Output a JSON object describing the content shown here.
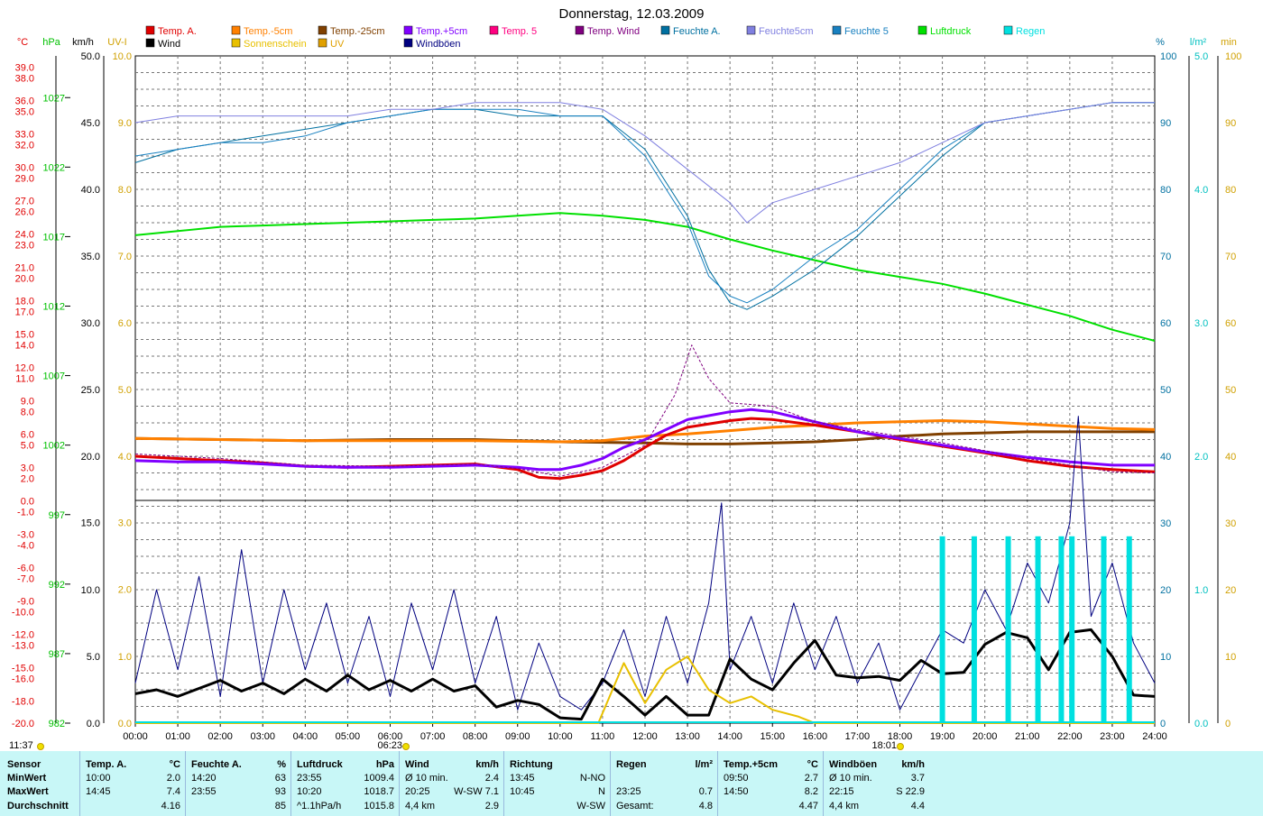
{
  "title": "Donnerstag, 12.03.2009",
  "legend": [
    {
      "label": "Temp. A.",
      "color": "#e00000"
    },
    {
      "label": "Wind",
      "color": "#000000"
    },
    {
      "label": "Temp.-5cm",
      "color": "#ff8000"
    },
    {
      "label": "Sonnenschein",
      "color": "#e8c000"
    },
    {
      "label": "Temp.-25cm",
      "color": "#804000"
    },
    {
      "label": "UV",
      "color": "#e0a000"
    },
    {
      "label": "Temp.+5cm",
      "color": "#8000ff"
    },
    {
      "label": "Windböen",
      "color": "#000080"
    },
    {
      "label": "Temp. 5",
      "color": "#ff0080"
    },
    {
      "label": "Temp. Wind",
      "color": "#800080"
    },
    {
      "label": "Feuchte A.",
      "color": "#0070a0"
    },
    {
      "label": "Feuchte5cm",
      "color": "#8080e0"
    },
    {
      "label": "Feuchte 5",
      "color": "#1880c0"
    },
    {
      "label": "Luftdruck",
      "color": "#00e000"
    },
    {
      "label": "Regen",
      "color": "#00e0e0"
    }
  ],
  "axis_units": {
    "temp": "°C",
    "hpa": "hPa",
    "kmh": "km/h",
    "uvi": "UV-I",
    "pct": "%",
    "lm2": "l/m²",
    "min": "min"
  },
  "axis_colors": {
    "temp": "#e00000",
    "hpa": "#00c000",
    "kmh": "#000000",
    "uvi": "#d0a000",
    "pct": "#0070a0",
    "lm2": "#00c0c0",
    "min": "#d0a000"
  },
  "axes": {
    "temp_ticks": [
      "39.0",
      "38.0",
      "36.0",
      "35.0",
      "33.0",
      "32.0",
      "30.0",
      "29.0",
      "27.0",
      "26.0",
      "24.0",
      "23.0",
      "21.0",
      "20.0",
      "18.0",
      "17.0",
      "15.0",
      "14.0",
      "12.0",
      "11.0",
      "9.0",
      "8.0",
      "6.0",
      "5.0",
      "3.0",
      "2.0",
      "0.0",
      "-1.0",
      "-3.0",
      "-4.0",
      "-6.0",
      "-7.0",
      "-9.0",
      "-10.0",
      "-12.0",
      "-13.0",
      "-15.0",
      "-16.0",
      "-18.0",
      "-20.0"
    ],
    "hpa_ticks": [
      "1027",
      "1022",
      "1017",
      "1012",
      "1007",
      "1002",
      "997",
      "992",
      "987",
      "982"
    ],
    "kmh_upper": [
      "50.0",
      "45.0",
      "40.0",
      "35.0",
      "30.0",
      "25.0",
      "20.0"
    ],
    "uvi_upper": [
      "10.0",
      "9.0",
      "8.0",
      "7.0",
      "6.0",
      "5.0",
      "4.0"
    ],
    "kmh_lower": [
      "15.0",
      "10.0",
      "5.0",
      "0.0"
    ],
    "uvi_lower": [
      "3.0",
      "2.0",
      "1.0",
      "0.0"
    ],
    "pct_ticks": [
      "100",
      "90",
      "80",
      "70",
      "60",
      "50",
      "40",
      "30",
      "20",
      "10",
      "0"
    ],
    "lm2_ticks": [
      "5.0",
      "4.0",
      "3.0",
      "2.0",
      "1.0",
      "0.0"
    ],
    "min_ticks": [
      "100",
      "90",
      "80",
      "70",
      "60",
      "50",
      "40",
      "30",
      "20",
      "10",
      "0"
    ],
    "time_ticks": [
      "00:00",
      "01:00",
      "02:00",
      "03:00",
      "04:00",
      "05:00",
      "06:00",
      "07:00",
      "08:00",
      "09:00",
      "10:00",
      "11:00",
      "12:00",
      "13:00",
      "14:00",
      "15:00",
      "16:00",
      "17:00",
      "18:00",
      "19:00",
      "20:00",
      "21:00",
      "22:00",
      "23:00",
      "24:00"
    ]
  },
  "sun": {
    "times": [
      "11:37",
      "06:23",
      "18:01"
    ],
    "color": "#f0e000"
  },
  "chart_data": {
    "type": "line",
    "x_unit": "hours",
    "temp_range": [
      -20,
      40
    ],
    "hpa_range": [
      982,
      1030
    ],
    "pct_range": [
      0,
      100
    ],
    "series": [
      {
        "name": "Luftdruck",
        "axis": "hpa",
        "color": "#00e000",
        "width": 2,
        "x": [
          0,
          1,
          2,
          3,
          4,
          5,
          6,
          7,
          8,
          9,
          10,
          11,
          12,
          13,
          14,
          15,
          16,
          17,
          18,
          19,
          20,
          21,
          22,
          23,
          24
        ],
        "values": [
          1017.1,
          1017.4,
          1017.7,
          1017.8,
          1017.9,
          1018.0,
          1018.1,
          1018.2,
          1018.3,
          1018.5,
          1018.7,
          1018.5,
          1018.2,
          1017.7,
          1016.8,
          1016.0,
          1015.3,
          1014.6,
          1014.1,
          1013.6,
          1012.9,
          1012.1,
          1011.3,
          1010.3,
          1009.5
        ]
      },
      {
        "name": "Feuchte A.",
        "axis": "pct",
        "color": "#0070a0",
        "width": 1,
        "x": [
          0,
          1,
          2,
          3,
          4,
          5,
          6,
          7,
          8,
          9,
          10,
          11,
          12,
          13,
          13.5,
          14,
          14.4,
          15,
          16,
          17,
          18,
          19,
          20,
          21,
          22,
          23,
          24
        ],
        "values": [
          84,
          86,
          87,
          88,
          89,
          90,
          91,
          92,
          92,
          91,
          91,
          91,
          86,
          76,
          68,
          63,
          62,
          64,
          68,
          73,
          79,
          85,
          90,
          91,
          92,
          93,
          93
        ]
      },
      {
        "name": "Feuchte 5",
        "axis": "pct",
        "color": "#1880c0",
        "width": 1,
        "x": [
          0,
          1,
          2,
          3,
          4,
          5,
          6,
          7,
          8,
          9,
          10,
          11,
          12,
          13,
          13.5,
          14,
          14.4,
          15,
          16,
          17,
          18,
          19,
          20,
          21,
          22,
          23,
          24
        ],
        "values": [
          85,
          86,
          87,
          87,
          88,
          90,
          91,
          92,
          92,
          92,
          91,
          91,
          85,
          75,
          67,
          64,
          63,
          65,
          70,
          74,
          80,
          86,
          90,
          91,
          92,
          93,
          93
        ]
      },
      {
        "name": "Feuchte5cm",
        "axis": "pct",
        "color": "#8080e0",
        "width": 1,
        "x": [
          0,
          1,
          2,
          3,
          4,
          5,
          6,
          7,
          8,
          9,
          10,
          11,
          12,
          13,
          14,
          14.4,
          15,
          16,
          17,
          18,
          19,
          20,
          21,
          22,
          23,
          24
        ],
        "values": [
          90,
          91,
          91,
          91,
          91,
          91,
          92,
          92,
          93,
          93,
          93,
          92,
          88,
          83,
          78,
          75,
          78,
          80,
          82,
          84,
          87,
          90,
          91,
          92,
          93,
          93
        ]
      },
      {
        "name": "Temp.-25cm",
        "axis": "temp",
        "color": "#804000",
        "width": 3,
        "x": [
          0,
          2,
          4,
          6,
          8,
          10,
          12,
          13,
          14,
          15,
          16,
          17,
          18,
          19,
          20,
          21,
          22,
          23,
          24
        ],
        "values": [
          5.6,
          5.5,
          5.4,
          5.5,
          5.5,
          5.3,
          5.2,
          5.1,
          5.1,
          5.2,
          5.3,
          5.5,
          5.8,
          6.0,
          6.1,
          6.2,
          6.2,
          6.2,
          6.2
        ]
      },
      {
        "name": "Temp.-5cm",
        "axis": "temp",
        "color": "#ff8000",
        "width": 3,
        "x": [
          0,
          2,
          4,
          6,
          8,
          10,
          11,
          12,
          13,
          14,
          15,
          16,
          17,
          18,
          19,
          20,
          21,
          22,
          23,
          24
        ],
        "values": [
          5.6,
          5.5,
          5.4,
          5.4,
          5.4,
          5.3,
          5.4,
          5.8,
          6.0,
          6.3,
          6.6,
          6.8,
          7.0,
          7.1,
          7.2,
          7.1,
          6.9,
          6.7,
          6.5,
          6.4
        ]
      },
      {
        "name": "Temp. A.",
        "axis": "temp",
        "color": "#e00000",
        "width": 3,
        "x": [
          0,
          1,
          2,
          3,
          4,
          5,
          6,
          7,
          8,
          9,
          9.5,
          10,
          10.5,
          11,
          11.5,
          12,
          12.5,
          13,
          14,
          14.5,
          15,
          16,
          17,
          18,
          19,
          20,
          21,
          22,
          23,
          24
        ],
        "values": [
          4.0,
          3.8,
          3.6,
          3.4,
          3.1,
          3.0,
          3.1,
          3.2,
          3.3,
          2.8,
          2.1,
          2.0,
          2.3,
          2.7,
          3.6,
          4.8,
          5.9,
          6.6,
          7.2,
          7.4,
          7.3,
          6.8,
          6.2,
          5.5,
          4.9,
          4.3,
          3.6,
          3.1,
          2.8,
          2.6
        ]
      },
      {
        "name": "Temp.+5cm",
        "axis": "temp",
        "color": "#8000ff",
        "width": 3,
        "x": [
          0,
          1,
          2,
          3,
          4,
          5,
          6,
          7,
          8,
          9,
          9.5,
          10,
          10.5,
          11,
          11.5,
          12,
          12.5,
          13,
          14,
          14.5,
          15,
          16,
          17,
          18,
          19,
          20,
          21,
          22,
          23,
          24
        ],
        "values": [
          3.6,
          3.5,
          3.5,
          3.3,
          3.1,
          3.0,
          3.0,
          3.1,
          3.2,
          3.0,
          2.8,
          2.8,
          3.2,
          3.8,
          4.8,
          5.5,
          6.4,
          7.3,
          8.0,
          8.2,
          8.0,
          7.1,
          6.2,
          5.6,
          5.0,
          4.4,
          3.9,
          3.5,
          3.2,
          3.2
        ]
      },
      {
        "name": "Temp. Wind",
        "axis": "temp",
        "color": "#800080",
        "width": 1,
        "dash": "3,2",
        "x": [
          0,
          2,
          4,
          6,
          8,
          9,
          10,
          11,
          12,
          12.7,
          13.1,
          13.5,
          14,
          15,
          16,
          17,
          18,
          19,
          20,
          21,
          22,
          23,
          24
        ],
        "values": [
          4.2,
          3.8,
          3.2,
          3.1,
          3.3,
          2.9,
          2.2,
          3.0,
          5.0,
          9.5,
          14.0,
          11.0,
          8.8,
          8.5,
          7.1,
          6.4,
          5.8,
          5.2,
          4.5,
          3.8,
          3.2,
          2.6,
          2.5
        ]
      },
      {
        "name": "Windböen",
        "axis": "kmh",
        "color": "#000080",
        "width": 1,
        "x": [
          0,
          0.5,
          1,
          1.5,
          2,
          2.5,
          3,
          3.5,
          4,
          4.5,
          5,
          5.5,
          6,
          6.5,
          7,
          7.5,
          8,
          8.5,
          9,
          9.5,
          10,
          10.5,
          11,
          11.5,
          12,
          12.5,
          13,
          13.5,
          13.8,
          14,
          14.5,
          15,
          15.5,
          16,
          16.5,
          17,
          17.5,
          18,
          18.5,
          19,
          19.5,
          20,
          20.5,
          21,
          21.5,
          22,
          22.2,
          22.5,
          23,
          23.5,
          24
        ],
        "values": [
          3,
          10,
          4,
          11,
          2,
          13,
          3,
          10,
          4,
          9,
          3,
          8,
          2,
          9,
          4,
          10,
          3,
          8,
          1,
          6,
          2,
          1,
          3,
          7,
          2,
          8,
          3,
          9,
          16.5,
          4,
          8,
          3,
          9,
          4,
          8,
          3,
          6,
          1,
          4,
          7,
          6,
          10,
          7,
          12,
          9,
          15,
          23,
          8,
          12,
          6,
          3
        ]
      },
      {
        "name": "Wind",
        "axis": "kmh",
        "color": "#000000",
        "width": 3,
        "x": [
          0,
          0.5,
          1,
          1.5,
          2,
          2.5,
          3,
          3.5,
          4,
          4.5,
          5,
          5.5,
          6,
          6.5,
          7,
          7.5,
          8,
          8.5,
          9,
          9.5,
          10,
          10.5,
          11,
          11.5,
          12,
          12.5,
          13,
          13.5,
          14,
          14.5,
          15,
          15.5,
          16,
          16.5,
          17,
          17.5,
          18,
          18.5,
          19,
          19.5,
          20,
          20.5,
          21,
          21.5,
          22,
          22.5,
          23,
          23.5,
          24
        ],
        "values": [
          2.2,
          2.5,
          2.0,
          2.6,
          3.2,
          2.4,
          3.0,
          2.2,
          3.3,
          2.4,
          3.6,
          2.5,
          3.2,
          2.4,
          3.3,
          2.4,
          2.8,
          1.2,
          1.7,
          1.4,
          0.4,
          0.3,
          3.3,
          2.0,
          0.6,
          2.0,
          0.6,
          0.6,
          4.8,
          3.3,
          2.5,
          4.5,
          6.2,
          3.6,
          3.4,
          3.5,
          3.2,
          4.7,
          3.7,
          3.8,
          5.9,
          6.8,
          6.4,
          4.0,
          6.8,
          7.0,
          5.0,
          2.1,
          2.0
        ]
      },
      {
        "name": "Sonnenschein",
        "axis": "uvi_lower",
        "color": "#e8c000",
        "width": 2,
        "x": [
          0,
          10.9,
          11.5,
          12,
          12.5,
          13,
          13.5,
          14,
          14.5,
          15,
          15.6,
          16,
          24
        ],
        "values": [
          0,
          0,
          0.9,
          0.3,
          0.8,
          1.0,
          0.5,
          0.3,
          0.4,
          0.2,
          0.1,
          0,
          0
        ]
      },
      {
        "name": "Regen",
        "axis": "lm2",
        "color": "#00e0e0",
        "width": 6,
        "type": "bar",
        "x": [
          19.0,
          19.75,
          20.55,
          21.25,
          21.8,
          22.05,
          22.8,
          23.4
        ],
        "values": [
          1.4,
          1.4,
          1.4,
          1.4,
          1.4,
          1.4,
          1.4,
          1.4
        ]
      }
    ]
  },
  "stats": {
    "header": [
      "Sensor",
      "MinWert",
      "MaxWert",
      "Durchschnitt"
    ],
    "cols": [
      {
        "title": "Temp. A.",
        "unit": "°C",
        "rows": [
          [
            "10:00",
            "2.0"
          ],
          [
            "14:45",
            "7.4"
          ],
          [
            "",
            "4.16"
          ]
        ]
      },
      {
        "title": "Feuchte A.",
        "unit": "%",
        "rows": [
          [
            "14:20",
            "63"
          ],
          [
            "23:55",
            "93"
          ],
          [
            "",
            "85"
          ]
        ]
      },
      {
        "title": "Luftdruck",
        "unit": "hPa",
        "rows": [
          [
            "23:55",
            "1009.4"
          ],
          [
            "10:20",
            "1018.7"
          ],
          [
            "^1.1hPa/h",
            "1015.8"
          ]
        ]
      },
      {
        "title": "Wind",
        "unit": "km/h",
        "rows": [
          [
            "Ø 10 min.",
            "2.4"
          ],
          [
            "20:25",
            "W-SW 7.1"
          ],
          [
            "4,4 km",
            "2.9"
          ]
        ]
      },
      {
        "title": "Richtung",
        "unit": "",
        "rows": [
          [
            "13:45",
            "N-NO"
          ],
          [
            "10:45",
            "N"
          ],
          [
            "",
            "W-SW"
          ]
        ]
      },
      {
        "title": "Regen",
        "unit": "l/m²",
        "rows": [
          [
            "",
            ""
          ],
          [
            "23:25",
            "0.7"
          ],
          [
            "Gesamt:",
            "4.8"
          ]
        ]
      },
      {
        "title": "Temp.+5cm",
        "unit": "°C",
        "rows": [
          [
            "09:50",
            "2.7"
          ],
          [
            "14:50",
            "8.2"
          ],
          [
            "",
            "4.47"
          ]
        ]
      },
      {
        "title": "Windböen",
        "unit": "km/h",
        "rows": [
          [
            "Ø 10 min.",
            "3.7"
          ],
          [
            "22:15",
            "S 22.9"
          ],
          [
            "4,4 km",
            "4.4"
          ]
        ]
      }
    ]
  }
}
